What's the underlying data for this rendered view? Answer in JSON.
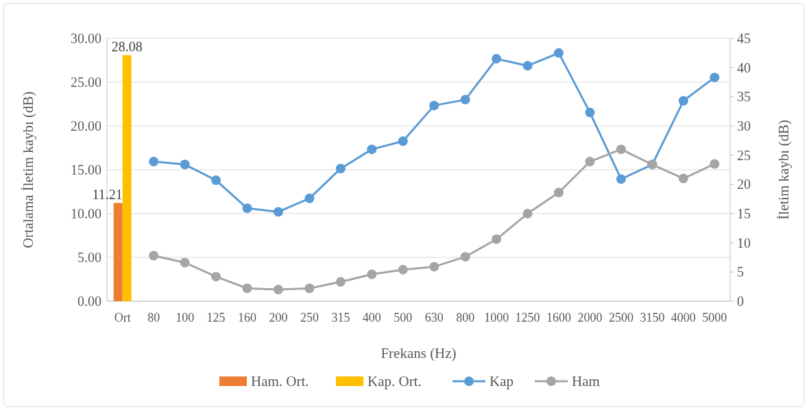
{
  "chart_data": {
    "type": "bar",
    "xlabel": "Frekans (Hz)",
    "ylabel": "Ortalama İletim kaybı (dB)",
    "y2label": "İletim kaybı (dB)",
    "categories": [
      "Ort",
      "80",
      "100",
      "125",
      "160",
      "200",
      "250",
      "315",
      "400",
      "500",
      "630",
      "800",
      "1000",
      "1250",
      "1600",
      "2000",
      "2500",
      "3150",
      "4000",
      "5000"
    ],
    "series": [
      {
        "name": "Ham. Ort.",
        "color": "#ed7d31",
        "values": [
          11.21,
          null,
          null,
          null,
          null,
          null,
          null,
          null,
          null,
          null,
          null,
          null,
          null,
          null,
          null,
          null,
          null,
          null,
          null,
          null
        ],
        "value_labels": [
          "11.21",
          null,
          null,
          null,
          null,
          null,
          null,
          null,
          null,
          null,
          null,
          null,
          null,
          null,
          null,
          null,
          null,
          null,
          null,
          null
        ]
      },
      {
        "name": "Kap. Ort.",
        "color": "#ffc000",
        "values": [
          28.08,
          null,
          null,
          null,
          null,
          null,
          null,
          null,
          null,
          null,
          null,
          null,
          null,
          null,
          null,
          null,
          null,
          null,
          null,
          null
        ],
        "value_labels": [
          "28.08",
          null,
          null,
          null,
          null,
          null,
          null,
          null,
          null,
          null,
          null,
          null,
          null,
          null,
          null,
          null,
          null,
          null,
          null,
          null
        ]
      },
      {
        "name": "Kap",
        "type": "line",
        "axis": "y2",
        "color": "#5b9bd5",
        "values": [
          null,
          23.9,
          23.4,
          20.7,
          15.9,
          15.3,
          17.6,
          22.7,
          26.0,
          27.4,
          33.5,
          34.5,
          41.5,
          40.3,
          42.5,
          32.3,
          20.9,
          23.4,
          34.3,
          38.3
        ]
      },
      {
        "name": "Ham",
        "type": "line",
        "axis": "y2",
        "color": "#a5a5a5",
        "values": [
          null,
          7.8,
          6.6,
          4.2,
          2.2,
          2.0,
          2.2,
          3.3,
          4.6,
          5.4,
          5.9,
          7.6,
          10.6,
          15.0,
          18.6,
          23.9,
          26.0,
          23.4,
          21.0,
          23.5
        ]
      }
    ],
    "ylim": [
      0,
      30
    ],
    "yticks": [
      {
        "value": 0,
        "label": "0.00"
      },
      {
        "value": 5,
        "label": "5.00"
      },
      {
        "value": 10,
        "label": "10.00"
      },
      {
        "value": 15,
        "label": "15.00"
      },
      {
        "value": 20,
        "label": "20.00"
      },
      {
        "value": 25,
        "label": "25.00"
      },
      {
        "value": 30,
        "label": "30.00"
      }
    ],
    "y2lim": [
      0,
      45
    ],
    "y2ticks": [
      0,
      5,
      10,
      15,
      20,
      25,
      30,
      35,
      40,
      45
    ],
    "grid": "y",
    "legend": "bottom",
    "marker": "circle",
    "line_style": "solid"
  }
}
